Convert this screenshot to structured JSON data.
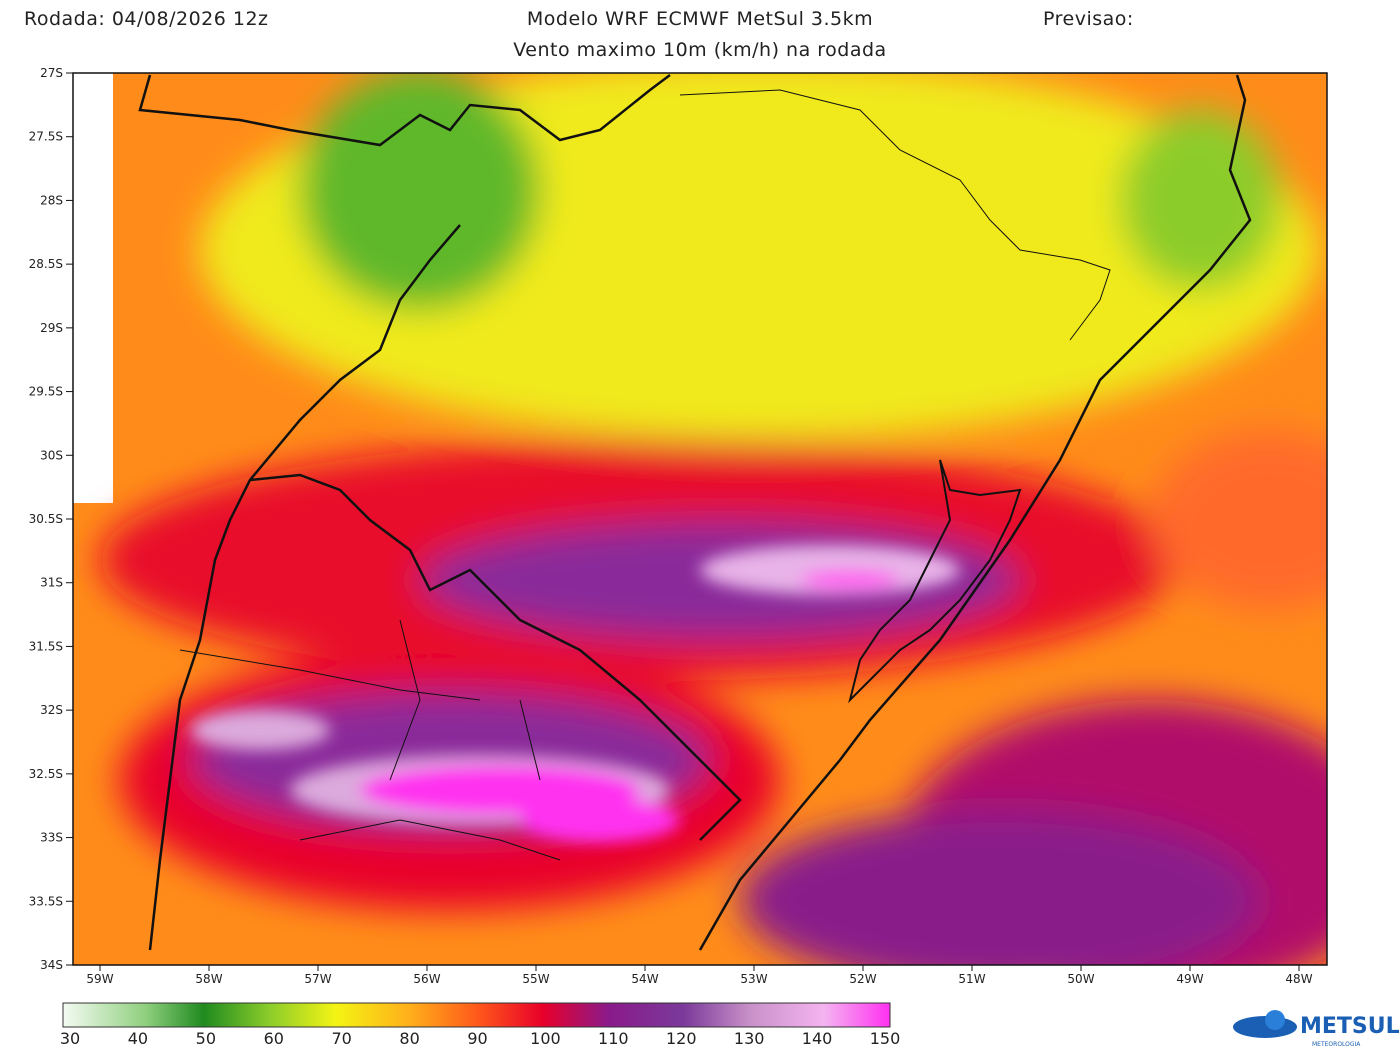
{
  "header": {
    "run": "Rodada: 04/08/2026 12z",
    "title": "Modelo WRF ECMWF MetSul 3.5km",
    "forecast": "Previsao:",
    "subtitle": "Vento maximo 10m (km/h) na rodada"
  },
  "map": {
    "lat_labels": [
      "27S",
      "27.5S",
      "28S",
      "28.5S",
      "29S",
      "29.5S",
      "30S",
      "30.5S",
      "31S",
      "31.5S",
      "32S",
      "32.5S",
      "33S",
      "33.5S",
      "34S"
    ],
    "lon_labels": [
      "59W",
      "58W",
      "57W",
      "56W",
      "55W",
      "54W",
      "53W",
      "52W",
      "51W",
      "50W",
      "49W",
      "48W"
    ]
  },
  "colorbar": {
    "labels": [
      30,
      40,
      50,
      60,
      70,
      80,
      90,
      100,
      110,
      120,
      130,
      140,
      150
    ]
  },
  "logo": {
    "name": "METSUL",
    "tagline": "METEOROLOGIA"
  }
}
